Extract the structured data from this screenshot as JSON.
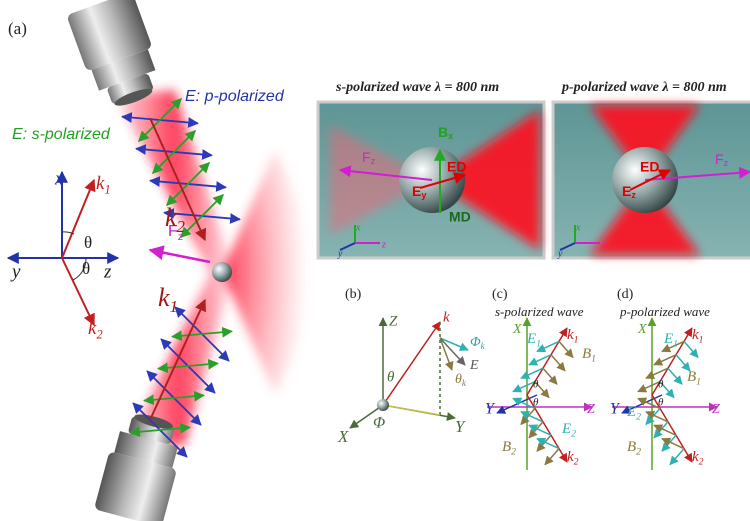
{
  "panel_a": {
    "label": "(a)",
    "e_p_label": "E: p-polarized",
    "e_s_label": "E: s-polarized",
    "axes": {
      "x": "x",
      "y": "y",
      "z": "z",
      "k1": {
        "main": "k",
        "sub": "1"
      },
      "k2": {
        "main": "k",
        "sub": "2"
      },
      "theta_upper": "θ",
      "theta_lower": "θ"
    },
    "force": {
      "main": "F",
      "sub": "z"
    },
    "beam_upper_k": {
      "main": "k",
      "sub": "2"
    },
    "beam_lower_k": {
      "main": "k",
      "sub": "1"
    }
  },
  "panel_s": {
    "title": "s-polarized wave  λ = 800 nm",
    "b": {
      "main": "B",
      "sub": "x"
    },
    "ed": "ED",
    "e": {
      "main": "E",
      "sub": "y"
    },
    "md": "MD",
    "f": {
      "main": "F",
      "sub": "z"
    },
    "x": "x",
    "y": "y",
    "z": "z"
  },
  "panel_p": {
    "title": "p-polarized wave  λ = 800 nm",
    "ed": "ED",
    "e": {
      "main": "E",
      "sub": "z"
    },
    "f": {
      "main": "F",
      "sub": "z"
    },
    "x": "x",
    "y": "y",
    "z": "z"
  },
  "panel_b": {
    "label": "(b)",
    "z": "Z",
    "k": "k",
    "phi_k": {
      "main": "Φ",
      "sub": "k"
    },
    "e": "E",
    "theta_k": {
      "main": "θ",
      "sub": "k"
    },
    "theta": "θ",
    "phi": "Φ",
    "x": "X",
    "y": "Y"
  },
  "panel_c": {
    "label": "(c)",
    "title": "s-polarized wave",
    "x": "X",
    "z": "Z",
    "y": "Y",
    "k1": {
      "main": "k",
      "sub": "1"
    },
    "k2": {
      "main": "k",
      "sub": "2"
    },
    "e1": {
      "main": "E",
      "sub": "1"
    },
    "e2": {
      "main": "E",
      "sub": "2"
    },
    "b1": {
      "main": "B",
      "sub": "1"
    },
    "b2": {
      "main": "B",
      "sub": "2"
    },
    "theta1": "θ",
    "theta2": "θ"
  },
  "panel_d": {
    "label": "(d)",
    "title": "p-polarized wave",
    "x": "X",
    "z": "Z",
    "y": "Y",
    "k1": {
      "main": "k",
      "sub": "1"
    },
    "k2": {
      "main": "k",
      "sub": "2"
    },
    "e1": {
      "main": "E",
      "sub": "1"
    },
    "e2": {
      "main": "E",
      "sub": "2"
    },
    "b1": {
      "main": "B",
      "sub": "1"
    },
    "b2": {
      "main": "B",
      "sub": "2"
    },
    "theta1": "θ",
    "theta2": "θ"
  }
}
